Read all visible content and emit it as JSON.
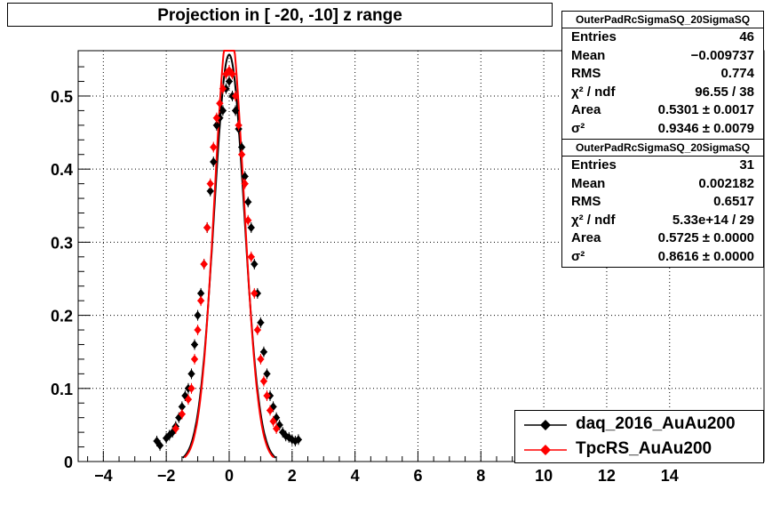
{
  "title": "Projection in [ -20, -10] z range",
  "stats_boxes": [
    {
      "header": "OuterPadRcSigmaSQ_20SigmaSQ",
      "rows": [
        {
          "label": "Entries",
          "value": "46"
        },
        {
          "label": "Mean",
          "value": "−0.009737"
        },
        {
          "label": "RMS",
          "value": "0.774"
        },
        {
          "label": "χ² / ndf",
          "value": "96.55 / 38"
        },
        {
          "label": "Area",
          "value": "0.5301 ± 0.0017"
        },
        {
          "label": "σ²",
          "value": "0.9346 ± 0.0079"
        }
      ]
    },
    {
      "header": "OuterPadRcSigmaSQ_20SigmaSQ",
      "rows": [
        {
          "label": "Entries",
          "value": "31"
        },
        {
          "label": "Mean",
          "value": "0.002182"
        },
        {
          "label": "RMS",
          "value": "0.6517"
        },
        {
          "label": "χ² / ndf",
          "value": "5.33e+14 / 29"
        },
        {
          "label": "Area",
          "value": "0.5725 ± 0.0000"
        },
        {
          "label": "σ²",
          "value": "0.8616 ± 0.0000"
        }
      ]
    }
  ],
  "legend": [
    {
      "name": "daq_2016_AuAu200",
      "color": "#000000"
    },
    {
      "name": "TpcRS_AuAu200",
      "color": "#ff0000"
    }
  ],
  "chart_data": {
    "type": "scatter",
    "title": "Projection in [ -20, -10] z range",
    "xlim": [
      -4.8,
      17
    ],
    "ylim": [
      0,
      0.562
    ],
    "x_ticks": [
      "−4",
      "−2",
      "0",
      "2",
      "4",
      "6",
      "8",
      "10",
      "12",
      "14"
    ],
    "x_tick_values": [
      -4,
      -2,
      0,
      2,
      4,
      6,
      8,
      10,
      12,
      14
    ],
    "y_ticks": [
      "0",
      "0.1",
      "0.2",
      "0.3",
      "0.4",
      "0.5"
    ],
    "y_tick_values": [
      0,
      0.1,
      0.2,
      0.3,
      0.4,
      0.5
    ],
    "grid": true,
    "legend_position": "bottom-right",
    "series": [
      {
        "name": "daq_2016_AuAu200",
        "color": "#000000",
        "x": [
          -2.3,
          -2.2,
          -2.0,
          -1.9,
          -1.8,
          -1.7,
          -1.6,
          -1.5,
          -1.4,
          -1.3,
          -1.2,
          -1.1,
          -1.0,
          -0.9,
          -0.8,
          -0.7,
          -0.6,
          -0.5,
          -0.4,
          -0.3,
          -0.2,
          -0.1,
          0.0,
          0.1,
          0.2,
          0.3,
          0.4,
          0.5,
          0.6,
          0.7,
          0.8,
          0.9,
          1.0,
          1.1,
          1.2,
          1.3,
          1.4,
          1.5,
          1.6,
          1.7,
          1.8,
          1.9,
          2.0,
          2.1,
          2.2
        ],
        "y": [
          0.028,
          0.022,
          0.032,
          0.036,
          0.04,
          0.048,
          0.06,
          0.075,
          0.09,
          0.1,
          0.12,
          0.16,
          0.2,
          0.23,
          0.27,
          0.32,
          0.37,
          0.41,
          0.46,
          0.47,
          0.48,
          0.51,
          0.52,
          0.5,
          0.48,
          0.455,
          0.43,
          0.39,
          0.355,
          0.32,
          0.27,
          0.23,
          0.19,
          0.15,
          0.12,
          0.09,
          0.075,
          0.06,
          0.05,
          0.04,
          0.035,
          0.033,
          0.03,
          0.028,
          0.03
        ]
      },
      {
        "name": "TpcRS_AuAu200",
        "color": "#ff0000",
        "x": [
          -1.7,
          -1.5,
          -1.3,
          -1.2,
          -1.1,
          -1.0,
          -0.9,
          -0.8,
          -0.7,
          -0.6,
          -0.5,
          -0.4,
          -0.3,
          -0.2,
          -0.1,
          0.0,
          0.1,
          0.2,
          0.3,
          0.4,
          0.5,
          0.6,
          0.7,
          0.8,
          0.9,
          1.0,
          1.1,
          1.2,
          1.3,
          1.4,
          1.5
        ],
        "y": [
          0.045,
          0.065,
          0.085,
          0.1,
          0.14,
          0.18,
          0.22,
          0.27,
          0.32,
          0.38,
          0.43,
          0.47,
          0.49,
          0.51,
          0.53,
          0.535,
          0.53,
          0.5,
          0.46,
          0.42,
          0.38,
          0.33,
          0.28,
          0.23,
          0.18,
          0.14,
          0.11,
          0.09,
          0.07,
          0.055,
          0.045
        ]
      }
    ],
    "fits": [
      {
        "color": "#000000",
        "area": 0.5301,
        "sigma2": 0.9346
      },
      {
        "color": "#ff0000",
        "area": 0.5725,
        "sigma2": 0.8616
      }
    ]
  }
}
